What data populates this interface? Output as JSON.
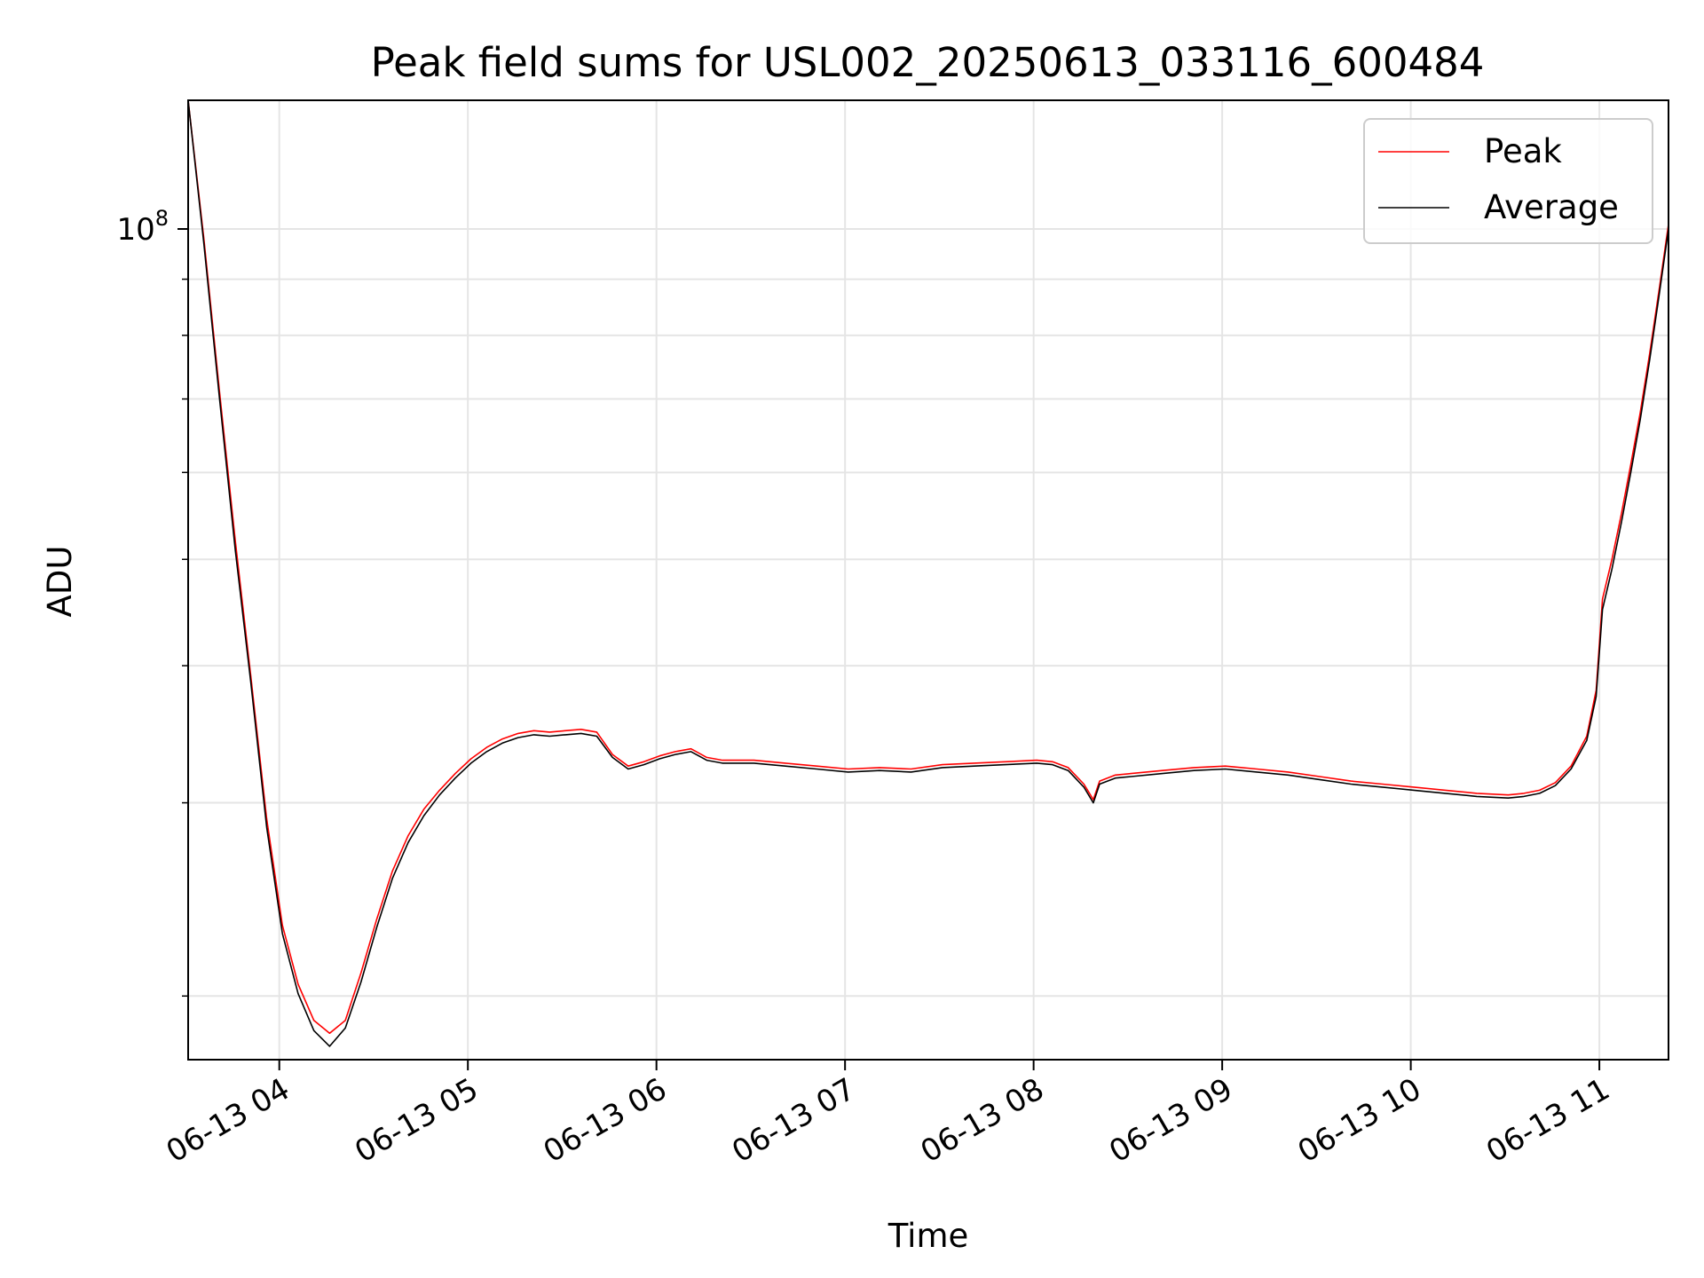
{
  "chart_data": {
    "type": "line",
    "title": "Peak field sums for USL002_20250613_033116_600484",
    "xlabel": "Time",
    "ylabel": "ADU",
    "y_scale": "log",
    "ylim": [
      17500000,
      131000000
    ],
    "xlim": [
      "06-13 03:31",
      "06-13 11:22"
    ],
    "grid": true,
    "legend": "top-right",
    "x_ticks": [
      "06-13 04",
      "06-13 05",
      "06-13 06",
      "06-13 07",
      "06-13 08",
      "06-13 09",
      "06-13 10",
      "06-13 11"
    ],
    "y_ticks": [
      {
        "value": 100000000,
        "base": "10",
        "exp": "8"
      }
    ],
    "y_minor_ticks": [
      20000000,
      30000000,
      40000000,
      50000000,
      60000000,
      70000000,
      80000000,
      90000000
    ],
    "x": [
      "06-13 03:31",
      "06-13 03:36",
      "06-13 03:41",
      "06-13 03:46",
      "06-13 03:51",
      "06-13 03:56",
      "06-13 04:01",
      "06-13 04:06",
      "06-13 04:11",
      "06-13 04:16",
      "06-13 04:21",
      "06-13 04:26",
      "06-13 04:31",
      "06-13 04:36",
      "06-13 04:41",
      "06-13 04:46",
      "06-13 04:51",
      "06-13 04:56",
      "06-13 05:01",
      "06-13 05:06",
      "06-13 05:11",
      "06-13 05:16",
      "06-13 05:21",
      "06-13 05:26",
      "06-13 05:31",
      "06-13 05:36",
      "06-13 05:41",
      "06-13 05:46",
      "06-13 05:51",
      "06-13 05:56",
      "06-13 06:01",
      "06-13 06:06",
      "06-13 06:11",
      "06-13 06:16",
      "06-13 06:21",
      "06-13 06:31",
      "06-13 06:41",
      "06-13 06:51",
      "06-13 07:01",
      "06-13 07:11",
      "06-13 07:21",
      "06-13 07:31",
      "06-13 07:41",
      "06-13 07:51",
      "06-13 08:01",
      "06-13 08:06",
      "06-13 08:11",
      "06-13 08:16",
      "06-13 08:19",
      "06-13 08:21",
      "06-13 08:26",
      "06-13 08:31",
      "06-13 08:41",
      "06-13 08:51",
      "06-13 09:01",
      "06-13 09:11",
      "06-13 09:21",
      "06-13 09:31",
      "06-13 09:41",
      "06-13 09:51",
      "06-13 10:01",
      "06-13 10:11",
      "06-13 10:21",
      "06-13 10:31",
      "06-13 10:36",
      "06-13 10:41",
      "06-13 10:46",
      "06-13 10:51",
      "06-13 10:56",
      "06-13 10:59",
      "06-13 11:01",
      "06-13 11:04",
      "06-13 11:07",
      "06-13 11:10",
      "06-13 11:13",
      "06-13 11:16",
      "06-13 11:19",
      "06-13 11:22"
    ],
    "series": [
      {
        "name": "Peak",
        "color": "#ff0000",
        "values": [
          131000000,
          98000000,
          71000000,
          52000000,
          39000000,
          29000000,
          23200000,
          20500000,
          19000000,
          18500000,
          19000000,
          21000000,
          23500000,
          26000000,
          28000000,
          29600000,
          30800000,
          31900000,
          32900000,
          33700000,
          34300000,
          34700000,
          34900000,
          34800000,
          34900000,
          35000000,
          34800000,
          33200000,
          32400000,
          32700000,
          33100000,
          33400000,
          33600000,
          33000000,
          32800000,
          32800000,
          32600000,
          32400000,
          32200000,
          32300000,
          32200000,
          32500000,
          32600000,
          32700000,
          32800000,
          32700000,
          32300000,
          31200000,
          30200000,
          31400000,
          31800000,
          31900000,
          32100000,
          32300000,
          32400000,
          32200000,
          32000000,
          31700000,
          31400000,
          31200000,
          31000000,
          30800000,
          30600000,
          30500000,
          30600000,
          30800000,
          31300000,
          32400000,
          34500000,
          38000000,
          46000000,
          50000000,
          55000000,
          61000000,
          68000000,
          77000000,
          88000000,
          101000000
        ]
      },
      {
        "name": "Average",
        "color": "#000000",
        "values": [
          131000000,
          97000000,
          70000000,
          51000000,
          38500000,
          28500000,
          22800000,
          20100000,
          18600000,
          18000000,
          18700000,
          20600000,
          23100000,
          25600000,
          27600000,
          29200000,
          30500000,
          31600000,
          32600000,
          33400000,
          34000000,
          34400000,
          34600000,
          34500000,
          34600000,
          34700000,
          34500000,
          33000000,
          32200000,
          32500000,
          32900000,
          33200000,
          33400000,
          32800000,
          32600000,
          32600000,
          32400000,
          32200000,
          32000000,
          32100000,
          32000000,
          32300000,
          32400000,
          32500000,
          32600000,
          32500000,
          32100000,
          31000000,
          30000000,
          31200000,
          31600000,
          31700000,
          31900000,
          32100000,
          32200000,
          32000000,
          31800000,
          31500000,
          31200000,
          31000000,
          30800000,
          30600000,
          30400000,
          30300000,
          30400000,
          30600000,
          31100000,
          32200000,
          34200000,
          37500000,
          45000000,
          49000000,
          54000000,
          60000000,
          67000000,
          76000000,
          87000000,
          100000000
        ]
      }
    ]
  }
}
